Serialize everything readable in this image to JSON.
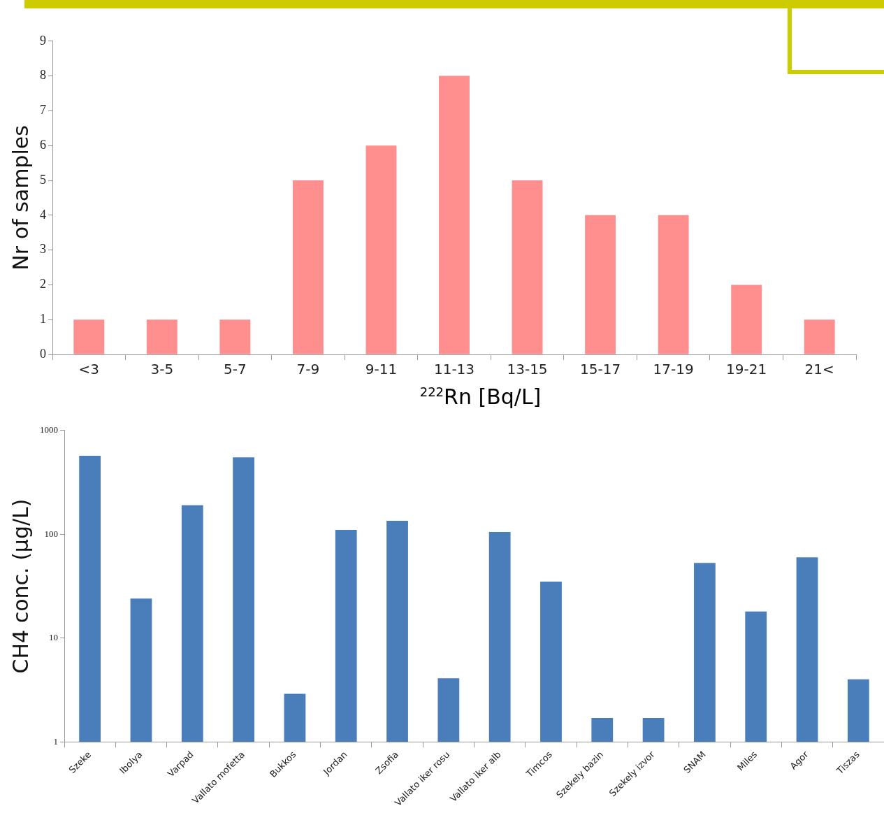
{
  "chart_data": [
    {
      "type": "bar",
      "categories": [
        "<3",
        "3-5",
        "5-7",
        "7-9",
        "9-11",
        "11-13",
        "13-15",
        "15-17",
        "17-19",
        "19-21",
        "21<"
      ],
      "values": [
        1,
        1,
        1,
        5,
        6,
        8,
        5,
        4,
        4,
        2,
        1
      ],
      "color": "#ff8f8f",
      "xlabel": "$^{222}$Rn [Bq/L]",
      "ylabel": "Nr of samples",
      "ylim": [
        0,
        9
      ],
      "yticks": [
        0,
        1,
        2,
        3,
        4,
        5,
        6,
        7,
        8,
        9
      ],
      "grid": false,
      "legend": false
    },
    {
      "type": "bar",
      "categories": [
        "Szeke",
        "Ibolya",
        "Varpad",
        "Vallato mofetta",
        "Bukkos",
        "Jordan",
        "Zsofia",
        "Vallato iker rosu",
        "Vallato iker alb",
        "Timcos",
        "Szekely bazin",
        "Szekely izvor",
        "SNAM",
        "Miles",
        "Agor",
        "Tiszas"
      ],
      "values": [
        570,
        24,
        190,
        550,
        2.9,
        110,
        135,
        4.1,
        105,
        35,
        1.7,
        1.7,
        53,
        18,
        60,
        4
      ],
      "color": "#4a7ebb",
      "ylabel": "CH4 conc. (µg/L)",
      "log": true,
      "ylim": [
        1,
        1000
      ],
      "yticks": [
        1,
        10,
        100,
        1000
      ],
      "grid": false,
      "legend": false
    }
  ]
}
